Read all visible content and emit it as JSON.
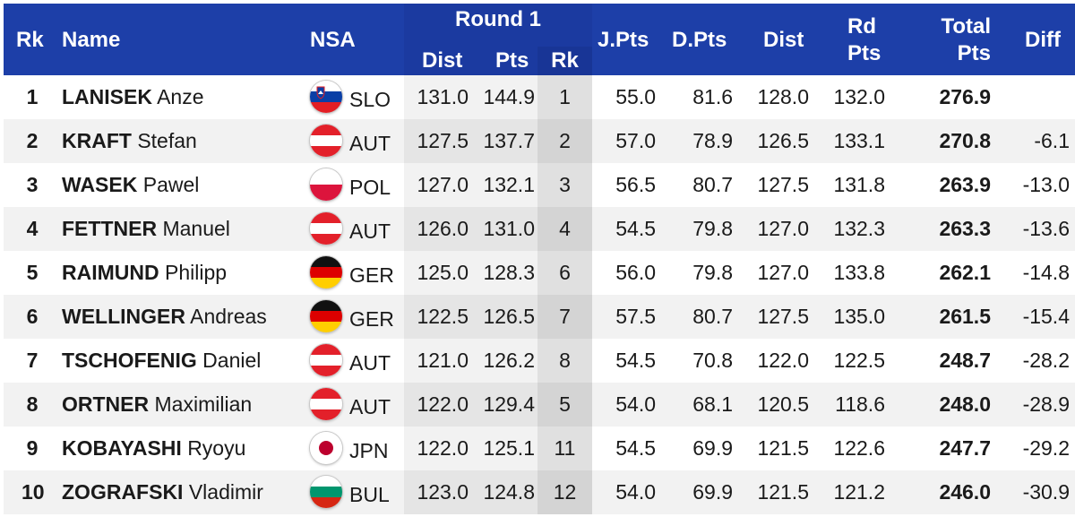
{
  "header": {
    "rk": "Rk",
    "name": "Name",
    "nsa": "NSA",
    "round1": "Round 1",
    "dist": "Dist",
    "pts": "Pts",
    "r1_rk": "Rk",
    "jpts": "J.Pts",
    "dpts": "D.Pts",
    "dist2": "Dist",
    "rd_pts_line1": "Rd",
    "rd_pts_line2": "Pts",
    "total_line1": "Total",
    "total_line2": "Pts",
    "diff": "Diff"
  },
  "colors": {
    "header_bg": "#1d3fa8",
    "header_text": "#ffffff",
    "row_alt": "#f2f2f2"
  },
  "rows": [
    {
      "rk": "1",
      "surname": "LANISEK",
      "firstname": "Anze",
      "nsa": "SLO",
      "flag": "slovenia-flag-icon",
      "dist": "131.0",
      "pts": "144.9",
      "r1rk": "1",
      "jpts": "55.0",
      "dpts": "81.6",
      "dist2": "128.0",
      "rdpts": "132.0",
      "total": "276.9",
      "diff": ""
    },
    {
      "rk": "2",
      "surname": "KRAFT",
      "firstname": "Stefan",
      "nsa": "AUT",
      "flag": "austria-flag-icon",
      "dist": "127.5",
      "pts": "137.7",
      "r1rk": "2",
      "jpts": "57.0",
      "dpts": "78.9",
      "dist2": "126.5",
      "rdpts": "133.1",
      "total": "270.8",
      "diff": "-6.1"
    },
    {
      "rk": "3",
      "surname": "WASEK",
      "firstname": "Pawel",
      "nsa": "POL",
      "flag": "poland-flag-icon",
      "dist": "127.0",
      "pts": "132.1",
      "r1rk": "3",
      "jpts": "56.5",
      "dpts": "80.7",
      "dist2": "127.5",
      "rdpts": "131.8",
      "total": "263.9",
      "diff": "-13.0"
    },
    {
      "rk": "4",
      "surname": "FETTNER",
      "firstname": "Manuel",
      "nsa": "AUT",
      "flag": "austria-flag-icon",
      "dist": "126.0",
      "pts": "131.0",
      "r1rk": "4",
      "jpts": "54.5",
      "dpts": "79.8",
      "dist2": "127.0",
      "rdpts": "132.3",
      "total": "263.3",
      "diff": "-13.6"
    },
    {
      "rk": "5",
      "surname": "RAIMUND",
      "firstname": "Philipp",
      "nsa": "GER",
      "flag": "germany-flag-icon",
      "dist": "125.0",
      "pts": "128.3",
      "r1rk": "6",
      "jpts": "56.0",
      "dpts": "79.8",
      "dist2": "127.0",
      "rdpts": "133.8",
      "total": "262.1",
      "diff": "-14.8"
    },
    {
      "rk": "6",
      "surname": "WELLINGER",
      "firstname": "Andreas",
      "nsa": "GER",
      "flag": "germany-flag-icon",
      "dist": "122.5",
      "pts": "126.5",
      "r1rk": "7",
      "jpts": "57.5",
      "dpts": "80.7",
      "dist2": "127.5",
      "rdpts": "135.0",
      "total": "261.5",
      "diff": "-15.4"
    },
    {
      "rk": "7",
      "surname": "TSCHOFENIG",
      "firstname": "Daniel",
      "nsa": "AUT",
      "flag": "austria-flag-icon",
      "dist": "121.0",
      "pts": "126.2",
      "r1rk": "8",
      "jpts": "54.5",
      "dpts": "70.8",
      "dist2": "122.0",
      "rdpts": "122.5",
      "total": "248.7",
      "diff": "-28.2"
    },
    {
      "rk": "8",
      "surname": "ORTNER",
      "firstname": "Maximilian",
      "nsa": "AUT",
      "flag": "austria-flag-icon",
      "dist": "122.0",
      "pts": "129.4",
      "r1rk": "5",
      "jpts": "54.0",
      "dpts": "68.1",
      "dist2": "120.5",
      "rdpts": "118.6",
      "total": "248.0",
      "diff": "-28.9"
    },
    {
      "rk": "9",
      "surname": "KOBAYASHI",
      "firstname": "Ryoyu",
      "nsa": "JPN",
      "flag": "japan-flag-icon",
      "dist": "122.0",
      "pts": "125.1",
      "r1rk": "11",
      "jpts": "54.5",
      "dpts": "69.9",
      "dist2": "121.5",
      "rdpts": "122.6",
      "total": "247.7",
      "diff": "-29.2"
    },
    {
      "rk": "10",
      "surname": "ZOGRAFSKI",
      "firstname": "Vladimir",
      "nsa": "BUL",
      "flag": "bulgaria-flag-icon",
      "dist": "123.0",
      "pts": "124.8",
      "r1rk": "12",
      "jpts": "54.0",
      "dpts": "69.9",
      "dist2": "121.5",
      "rdpts": "121.2",
      "total": "246.0",
      "diff": "-30.9"
    }
  ]
}
